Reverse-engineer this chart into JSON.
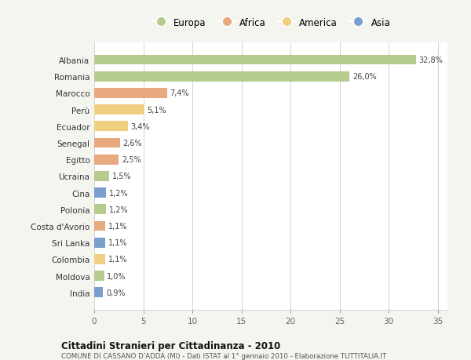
{
  "countries": [
    "Albania",
    "Romania",
    "Marocco",
    "Perù",
    "Ecuador",
    "Senegal",
    "Egitto",
    "Ucraina",
    "Cina",
    "Polonia",
    "Costa d'Avorio",
    "Sri Lanka",
    "Colombia",
    "Moldova",
    "India"
  ],
  "values": [
    32.8,
    26.0,
    7.4,
    5.1,
    3.4,
    2.6,
    2.5,
    1.5,
    1.2,
    1.2,
    1.1,
    1.1,
    1.1,
    1.0,
    0.9
  ],
  "labels": [
    "32,8%",
    "26,0%",
    "7,4%",
    "5,1%",
    "3,4%",
    "2,6%",
    "2,5%",
    "1,5%",
    "1,2%",
    "1,2%",
    "1,1%",
    "1,1%",
    "1,1%",
    "1,0%",
    "0,9%"
  ],
  "continents": [
    "Europa",
    "Europa",
    "Africa",
    "America",
    "America",
    "Africa",
    "Africa",
    "Europa",
    "Asia",
    "Europa",
    "Africa",
    "Asia",
    "America",
    "Europa",
    "Asia"
  ],
  "colors": {
    "Europa": "#b5cc8e",
    "Africa": "#e8a97e",
    "America": "#f0d080",
    "Asia": "#7b9fcc"
  },
  "legend_order": [
    "Europa",
    "Africa",
    "America",
    "Asia"
  ],
  "title": "Cittadini Stranieri per Cittadinanza - 2010",
  "subtitle": "COMUNE DI CASSANO D'ADDA (MI) - Dati ISTAT al 1° gennaio 2010 - Elaborazione TUTTITALIA.IT",
  "xlim": [
    0,
    36
  ],
  "xticks": [
    0,
    5,
    10,
    15,
    20,
    25,
    30,
    35
  ],
  "bg_color": "#f5f5f0",
  "plot_bg_color": "#ffffff"
}
